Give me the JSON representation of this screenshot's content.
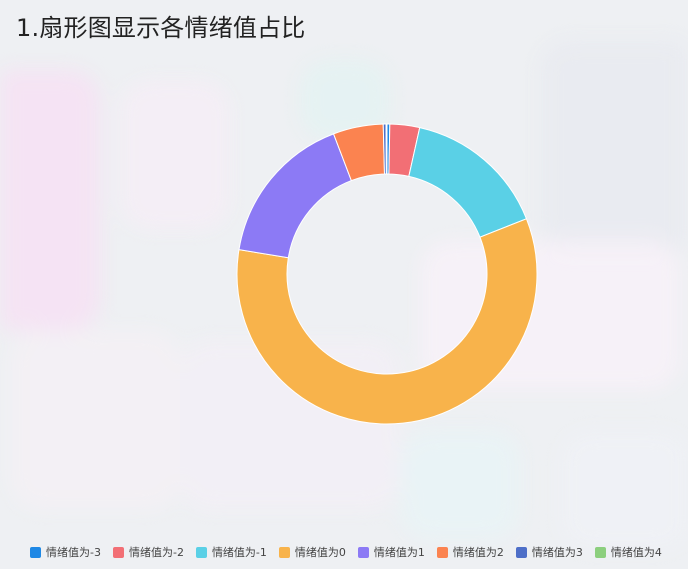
{
  "title": "1.扇形图显示各情绪值占比",
  "chart_data": {
    "type": "pie",
    "donut": true,
    "title": "1.扇形图显示各情绪值占比",
    "legend_position": "bottom",
    "categories": [
      "情绪值为-3",
      "情绪值为-2",
      "情绪值为-1",
      "情绪值为0",
      "情绪值为1",
      "情绪值为2",
      "情绪值为3",
      "情绪值为4"
    ],
    "values": [
      0.3,
      3.2,
      15.5,
      58.6,
      16.6,
      5.4,
      0.3,
      0.1
    ],
    "colors": [
      "#1e88e5",
      "#f26f75",
      "#5ad0e6",
      "#f8b34b",
      "#8c7af5",
      "#fb8350",
      "#4e6fc8",
      "#8ccf7e"
    ]
  }
}
